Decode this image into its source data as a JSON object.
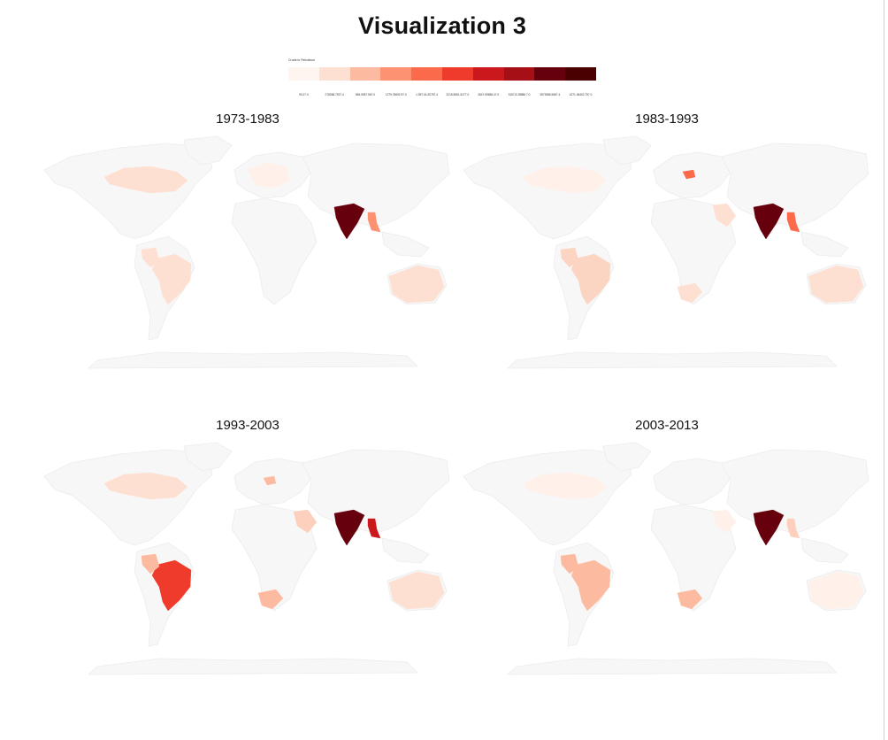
{
  "title": "Visualization 3",
  "legend": {
    "title": "Crude in Petroleum",
    "colors": [
      "#fff5f0",
      "#fee0d2",
      "#fcbba1",
      "#fc9272",
      "#fb6a4a",
      "#ef3b2c",
      "#cb181d",
      "#a50f15",
      "#67000d",
      "#4a0000"
    ],
    "labels": [
      "90.27.0",
      "278268.7927.4",
      "556.5057.567.0",
      "1279.78692.97.0",
      "1.957.04.30787.4",
      "2215.5551.5177.0",
      "2647.59658.47.0",
      "3157.8.28586.7.0",
      "3573986.5687.4",
      "4271.36402.797.0"
    ]
  },
  "base_colors": {
    "land": "#f7f7f7",
    "ocean": "#ffffff",
    "border": "#ececec"
  },
  "panels": [
    {
      "title": "1973-1983",
      "highlights": [
        {
          "country": "India",
          "color": "#67000d"
        },
        {
          "country": "Myanmar",
          "color": "#fc9272"
        },
        {
          "country": "Canada",
          "color": "#fee0d2"
        },
        {
          "country": "Brazil",
          "color": "#fee0d2"
        },
        {
          "country": "Colombia",
          "color": "#fee0d2"
        },
        {
          "country": "Australia",
          "color": "#fee0d2"
        },
        {
          "country": "Western Europe",
          "color": "#fff0ea"
        }
      ]
    },
    {
      "title": "1983-1993",
      "highlights": [
        {
          "country": "India",
          "color": "#67000d"
        },
        {
          "country": "Myanmar",
          "color": "#fb6a4a"
        },
        {
          "country": "Poland",
          "color": "#fb6a4a"
        },
        {
          "country": "Brazil",
          "color": "#fcd4c2"
        },
        {
          "country": "Colombia",
          "color": "#fcd4c2"
        },
        {
          "country": "Canada",
          "color": "#fff0ea"
        },
        {
          "country": "Australia",
          "color": "#fee0d2"
        },
        {
          "country": "South Africa",
          "color": "#fee0d2"
        },
        {
          "country": "Saudi Arabia",
          "color": "#fee0d2"
        }
      ]
    },
    {
      "title": "1993-2003",
      "highlights": [
        {
          "country": "India",
          "color": "#67000d"
        },
        {
          "country": "Myanmar",
          "color": "#cb181d"
        },
        {
          "country": "Brazil",
          "color": "#ef3b2c"
        },
        {
          "country": "Colombia",
          "color": "#fcbba1"
        },
        {
          "country": "Poland",
          "color": "#fcbba1"
        },
        {
          "country": "Saudi Arabia",
          "color": "#fdd0bd"
        },
        {
          "country": "South Africa",
          "color": "#fcbba1"
        },
        {
          "country": "Canada",
          "color": "#fee0d2"
        },
        {
          "country": "Australia",
          "color": "#fee0d2"
        }
      ]
    },
    {
      "title": "2003-2013",
      "highlights": [
        {
          "country": "India",
          "color": "#67000d"
        },
        {
          "country": "Myanmar",
          "color": "#fdd0bd"
        },
        {
          "country": "Brazil",
          "color": "#fcbba1"
        },
        {
          "country": "Colombia",
          "color": "#fcbba1"
        },
        {
          "country": "South Africa",
          "color": "#fcbba1"
        },
        {
          "country": "Canada",
          "color": "#fff0ea"
        },
        {
          "country": "Saudi Arabia",
          "color": "#fff0ea"
        },
        {
          "country": "Australia",
          "color": "#fff0ea"
        }
      ]
    }
  ]
}
